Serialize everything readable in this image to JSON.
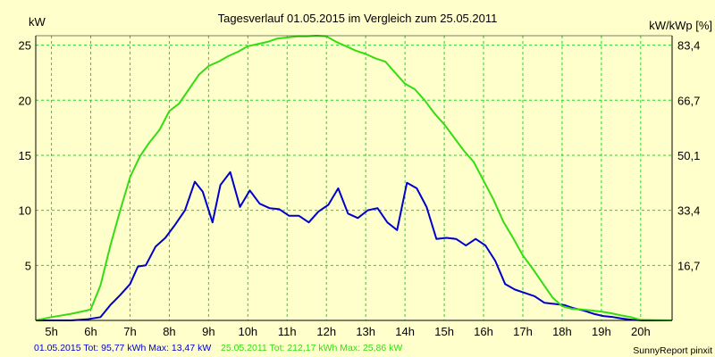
{
  "chart_data": {
    "type": "line",
    "title": "Tagesverlauf 01.05.2015 im Vergleich zum 25.05.2011",
    "ylabel_left": "kW",
    "ylabel_right": "kW/kWp [%]",
    "ylim": [
      0,
      25.86
    ],
    "xlim": [
      4.6,
      20.8
    ],
    "grid": true,
    "x_ticks": [
      "5h",
      "6h",
      "7h",
      "8h",
      "9h",
      "10h",
      "11h",
      "12h",
      "13h",
      "14h",
      "15h",
      "16h",
      "17h",
      "18h",
      "19h",
      "20h"
    ],
    "y_ticks_left": [
      "5",
      "10",
      "15",
      "20",
      "25"
    ],
    "y_ticks_right": [
      "16,7",
      "33,4",
      "50,1",
      "66,7",
      "83,4"
    ],
    "colors": {
      "series_2015": "#0000cc",
      "series_2011": "#33dd11",
      "grid": "#33cc33",
      "axis": "#000000"
    },
    "series": [
      {
        "key": "series_2015",
        "points": [
          [
            4.6,
            0
          ],
          [
            5.5,
            0
          ],
          [
            5.9,
            0.1
          ],
          [
            6.25,
            0.3
          ],
          [
            6.5,
            1.4
          ],
          [
            6.75,
            2.3
          ],
          [
            7.0,
            3.3
          ],
          [
            7.2,
            4.9
          ],
          [
            7.4,
            5.0
          ],
          [
            7.65,
            6.7
          ],
          [
            7.9,
            7.5
          ],
          [
            8.15,
            8.7
          ],
          [
            8.4,
            10.0
          ],
          [
            8.65,
            12.6
          ],
          [
            8.85,
            11.7
          ],
          [
            9.1,
            8.9
          ],
          [
            9.3,
            12.3
          ],
          [
            9.55,
            13.47
          ],
          [
            9.8,
            10.3
          ],
          [
            10.05,
            11.8
          ],
          [
            10.3,
            10.6
          ],
          [
            10.55,
            10.2
          ],
          [
            10.8,
            10.1
          ],
          [
            11.05,
            9.5
          ],
          [
            11.3,
            9.5
          ],
          [
            11.55,
            8.9
          ],
          [
            11.8,
            9.9
          ],
          [
            12.05,
            10.5
          ],
          [
            12.3,
            12.0
          ],
          [
            12.55,
            9.7
          ],
          [
            12.8,
            9.3
          ],
          [
            13.05,
            10.0
          ],
          [
            13.3,
            10.2
          ],
          [
            13.55,
            8.9
          ],
          [
            13.8,
            8.2
          ],
          [
            14.05,
            12.5
          ],
          [
            14.3,
            12.0
          ],
          [
            14.55,
            10.3
          ],
          [
            14.8,
            7.4
          ],
          [
            15.05,
            7.5
          ],
          [
            15.3,
            7.4
          ],
          [
            15.55,
            6.8
          ],
          [
            15.8,
            7.4
          ],
          [
            16.05,
            6.8
          ],
          [
            16.3,
            5.4
          ],
          [
            16.55,
            3.3
          ],
          [
            16.8,
            2.8
          ],
          [
            17.05,
            2.5
          ],
          [
            17.3,
            2.2
          ],
          [
            17.55,
            1.6
          ],
          [
            17.8,
            1.5
          ],
          [
            18.05,
            1.4
          ],
          [
            18.3,
            1.1
          ],
          [
            18.55,
            0.9
          ],
          [
            18.8,
            0.6
          ],
          [
            19.05,
            0.4
          ],
          [
            19.3,
            0.3
          ],
          [
            19.55,
            0.15
          ],
          [
            19.8,
            0.05
          ],
          [
            20.05,
            0
          ],
          [
            20.8,
            0
          ]
        ]
      },
      {
        "key": "series_2011",
        "points": [
          [
            4.6,
            0
          ],
          [
            5.0,
            0.3
          ],
          [
            5.5,
            0.6
          ],
          [
            5.9,
            0.9
          ],
          [
            6.0,
            1.0
          ],
          [
            6.25,
            3.2
          ],
          [
            6.5,
            6.8
          ],
          [
            6.75,
            10.0
          ],
          [
            7.0,
            13.0
          ],
          [
            7.25,
            14.9
          ],
          [
            7.5,
            16.2
          ],
          [
            7.75,
            17.3
          ],
          [
            8.0,
            19.0
          ],
          [
            8.25,
            19.7
          ],
          [
            8.5,
            21.0
          ],
          [
            8.75,
            22.3
          ],
          [
            9.0,
            23.1
          ],
          [
            9.25,
            23.5
          ],
          [
            9.5,
            24.0
          ],
          [
            9.75,
            24.4
          ],
          [
            10.0,
            24.9
          ],
          [
            10.25,
            25.1
          ],
          [
            10.5,
            25.3
          ],
          [
            10.75,
            25.6
          ],
          [
            11.0,
            25.7
          ],
          [
            11.25,
            25.8
          ],
          [
            11.5,
            25.8
          ],
          [
            11.75,
            25.86
          ],
          [
            12.0,
            25.8
          ],
          [
            12.25,
            25.3
          ],
          [
            12.5,
            24.9
          ],
          [
            12.75,
            24.5
          ],
          [
            13.0,
            24.2
          ],
          [
            13.25,
            23.8
          ],
          [
            13.5,
            23.5
          ],
          [
            13.75,
            22.5
          ],
          [
            14.0,
            21.5
          ],
          [
            14.25,
            21.0
          ],
          [
            14.5,
            20.0
          ],
          [
            14.75,
            18.8
          ],
          [
            15.0,
            17.8
          ],
          [
            15.25,
            16.6
          ],
          [
            15.5,
            15.4
          ],
          [
            15.75,
            14.4
          ],
          [
            16.0,
            12.7
          ],
          [
            16.25,
            11.0
          ],
          [
            16.5,
            9.0
          ],
          [
            16.75,
            7.5
          ],
          [
            17.0,
            5.9
          ],
          [
            17.25,
            4.7
          ],
          [
            17.5,
            3.4
          ],
          [
            17.75,
            2.1
          ],
          [
            18.0,
            1.3
          ],
          [
            18.25,
            1.05
          ],
          [
            18.5,
            1.0
          ],
          [
            18.75,
            0.9
          ],
          [
            19.0,
            0.8
          ],
          [
            19.25,
            0.65
          ],
          [
            19.5,
            0.45
          ],
          [
            19.75,
            0.3
          ],
          [
            20.0,
            0.05
          ],
          [
            20.8,
            0
          ]
        ]
      }
    ]
  },
  "footer": {
    "summary_2015": "01.05.2015 Tot: 95,77 kWh Max: 13,47 kW",
    "summary_2011": "25.05.2011 Tot: 212,17 kWh Max: 25,86 kW",
    "credit": "SunnyReport pinxit"
  }
}
